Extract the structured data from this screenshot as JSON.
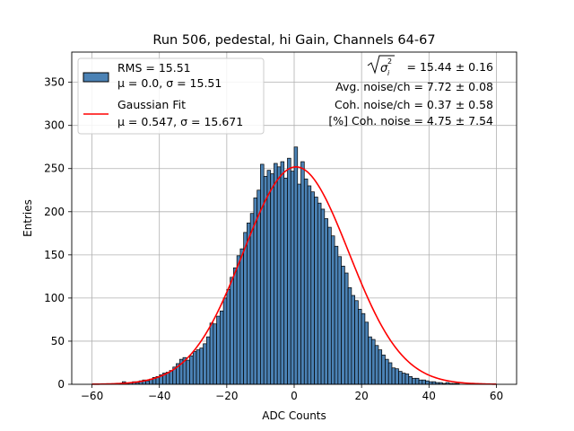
{
  "chart_data": {
    "type": "bar",
    "title": "Run 506, pedestal, hi Gain, Channels 64-67",
    "xlabel": "ADC Counts",
    "ylabel": "Entries",
    "xlim": [
      -66,
      66
    ],
    "ylim": [
      0,
      385
    ],
    "xticks": [
      -60,
      -40,
      -20,
      0,
      20,
      40,
      60
    ],
    "yticks": [
      0,
      50,
      100,
      150,
      200,
      250,
      300,
      350
    ],
    "grid": true,
    "legend_placement": "top-left",
    "colors": {
      "bars": "#4b82b5",
      "bar_edge": "#000000",
      "fit": "#ff0000"
    },
    "histogram": {
      "name": "RMS = 15.51",
      "name_line2": "μ = 0.0, σ = 15.51",
      "bin_width": 1,
      "x_start": -60,
      "counts": [
        0,
        0,
        0,
        0,
        0,
        0,
        0,
        0,
        1,
        3,
        1,
        2,
        3,
        2,
        4,
        5,
        4,
        6,
        8,
        9,
        11,
        13,
        14,
        16,
        20,
        24,
        29,
        31,
        28,
        33,
        38,
        40,
        42,
        47,
        55,
        71,
        70,
        79,
        85,
        100,
        110,
        124,
        135,
        149,
        157,
        176,
        187,
        198,
        216,
        225,
        255,
        241,
        248,
        244,
        256,
        252,
        258,
        239,
        262,
        247,
        275,
        232,
        258,
        238,
        230,
        223,
        217,
        210,
        203,
        192,
        182,
        172,
        160,
        148,
        137,
        129,
        112,
        103,
        97,
        87,
        82,
        72,
        55,
        52,
        45,
        40,
        34,
        29,
        25,
        19,
        18,
        15,
        13,
        12,
        9,
        7,
        7,
        5,
        5,
        4,
        3,
        3,
        2,
        2,
        1,
        2,
        1,
        1,
        1,
        0,
        0,
        0,
        0,
        0,
        0,
        0,
        0,
        0,
        0,
        0,
        0
      ]
    },
    "fit": {
      "name": "Gaussian Fit",
      "name_line2": "μ = 0.547, σ = 15.671",
      "mu": 0.547,
      "sigma": 15.671,
      "amplitude": 252,
      "x_range": [
        -60,
        60
      ]
    },
    "annotations": [
      {
        "label": "σi2",
        "value": " = 15.44 ± 0.16"
      },
      {
        "label": "",
        "value": "Avg. noise/ch = 7.72 ± 0.08"
      },
      {
        "label": "",
        "value": "Coh. noise/ch = 0.37 ± 0.58"
      },
      {
        "label": "",
        "value": "[%] Coh. noise = 4.75 ± 7.54"
      }
    ]
  }
}
